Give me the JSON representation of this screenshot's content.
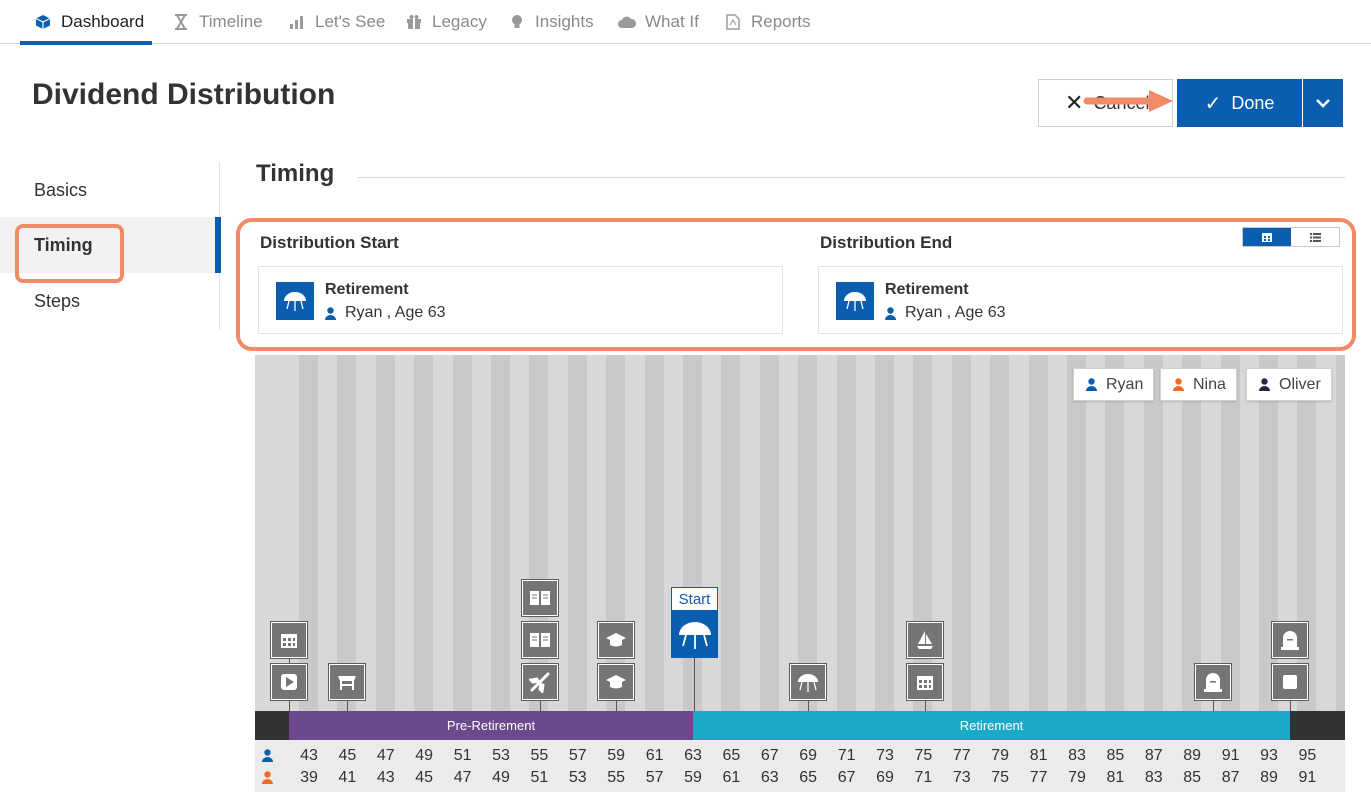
{
  "nav": {
    "tabs": [
      {
        "label": "Dashboard",
        "icon": "cube-icon",
        "active": true
      },
      {
        "label": "Timeline",
        "icon": "hourglass-icon"
      },
      {
        "label": "Let's See",
        "icon": "bar-chart-icon"
      },
      {
        "label": "Legacy",
        "icon": "gift-icon"
      },
      {
        "label": "Insights",
        "icon": "lightbulb-icon"
      },
      {
        "label": "What If",
        "icon": "cloud-icon"
      },
      {
        "label": "Reports",
        "icon": "pdf-icon"
      }
    ]
  },
  "header": {
    "title": "Dividend Distribution",
    "cancel_label": "Cancel",
    "done_label": "Done"
  },
  "steps": [
    "Basics",
    "Timing",
    "Steps"
  ],
  "section_title": "Timing",
  "distribution": {
    "start": {
      "label": "Distribution Start",
      "event": "Retirement",
      "person": "Ryan , Age 63"
    },
    "end": {
      "label": "Distribution End",
      "event": "Retirement",
      "person": "Ryan , Age 63"
    }
  },
  "people": [
    {
      "name": "Ryan",
      "color": "#0b5db0"
    },
    {
      "name": "Nina",
      "color": "#f06a22"
    },
    {
      "name": "Oliver",
      "color": "#1f2a44"
    }
  ],
  "timeline": {
    "start_label": "Start",
    "phases": [
      "Pre-Retirement",
      "Retirement"
    ],
    "ryan_ages": [
      "43",
      "45",
      "47",
      "49",
      "51",
      "53",
      "55",
      "57",
      "59",
      "61",
      "63",
      "65",
      "67",
      "69",
      "71",
      "73",
      "75",
      "77",
      "79",
      "81",
      "83",
      "85",
      "87",
      "89",
      "91",
      "93",
      "95"
    ],
    "nina_ages": [
      "39",
      "41",
      "43",
      "45",
      "47",
      "49",
      "51",
      "53",
      "55",
      "57",
      "59",
      "61",
      "63",
      "65",
      "67",
      "69",
      "71",
      "73",
      "75",
      "77",
      "79",
      "81",
      "83",
      "85",
      "87",
      "89",
      "91"
    ]
  },
  "colors": {
    "accent": "#0b5db0",
    "highlight": "#f08b66",
    "pre_retirement": "#6a4a8c",
    "retirement": "#1aa9c9"
  }
}
